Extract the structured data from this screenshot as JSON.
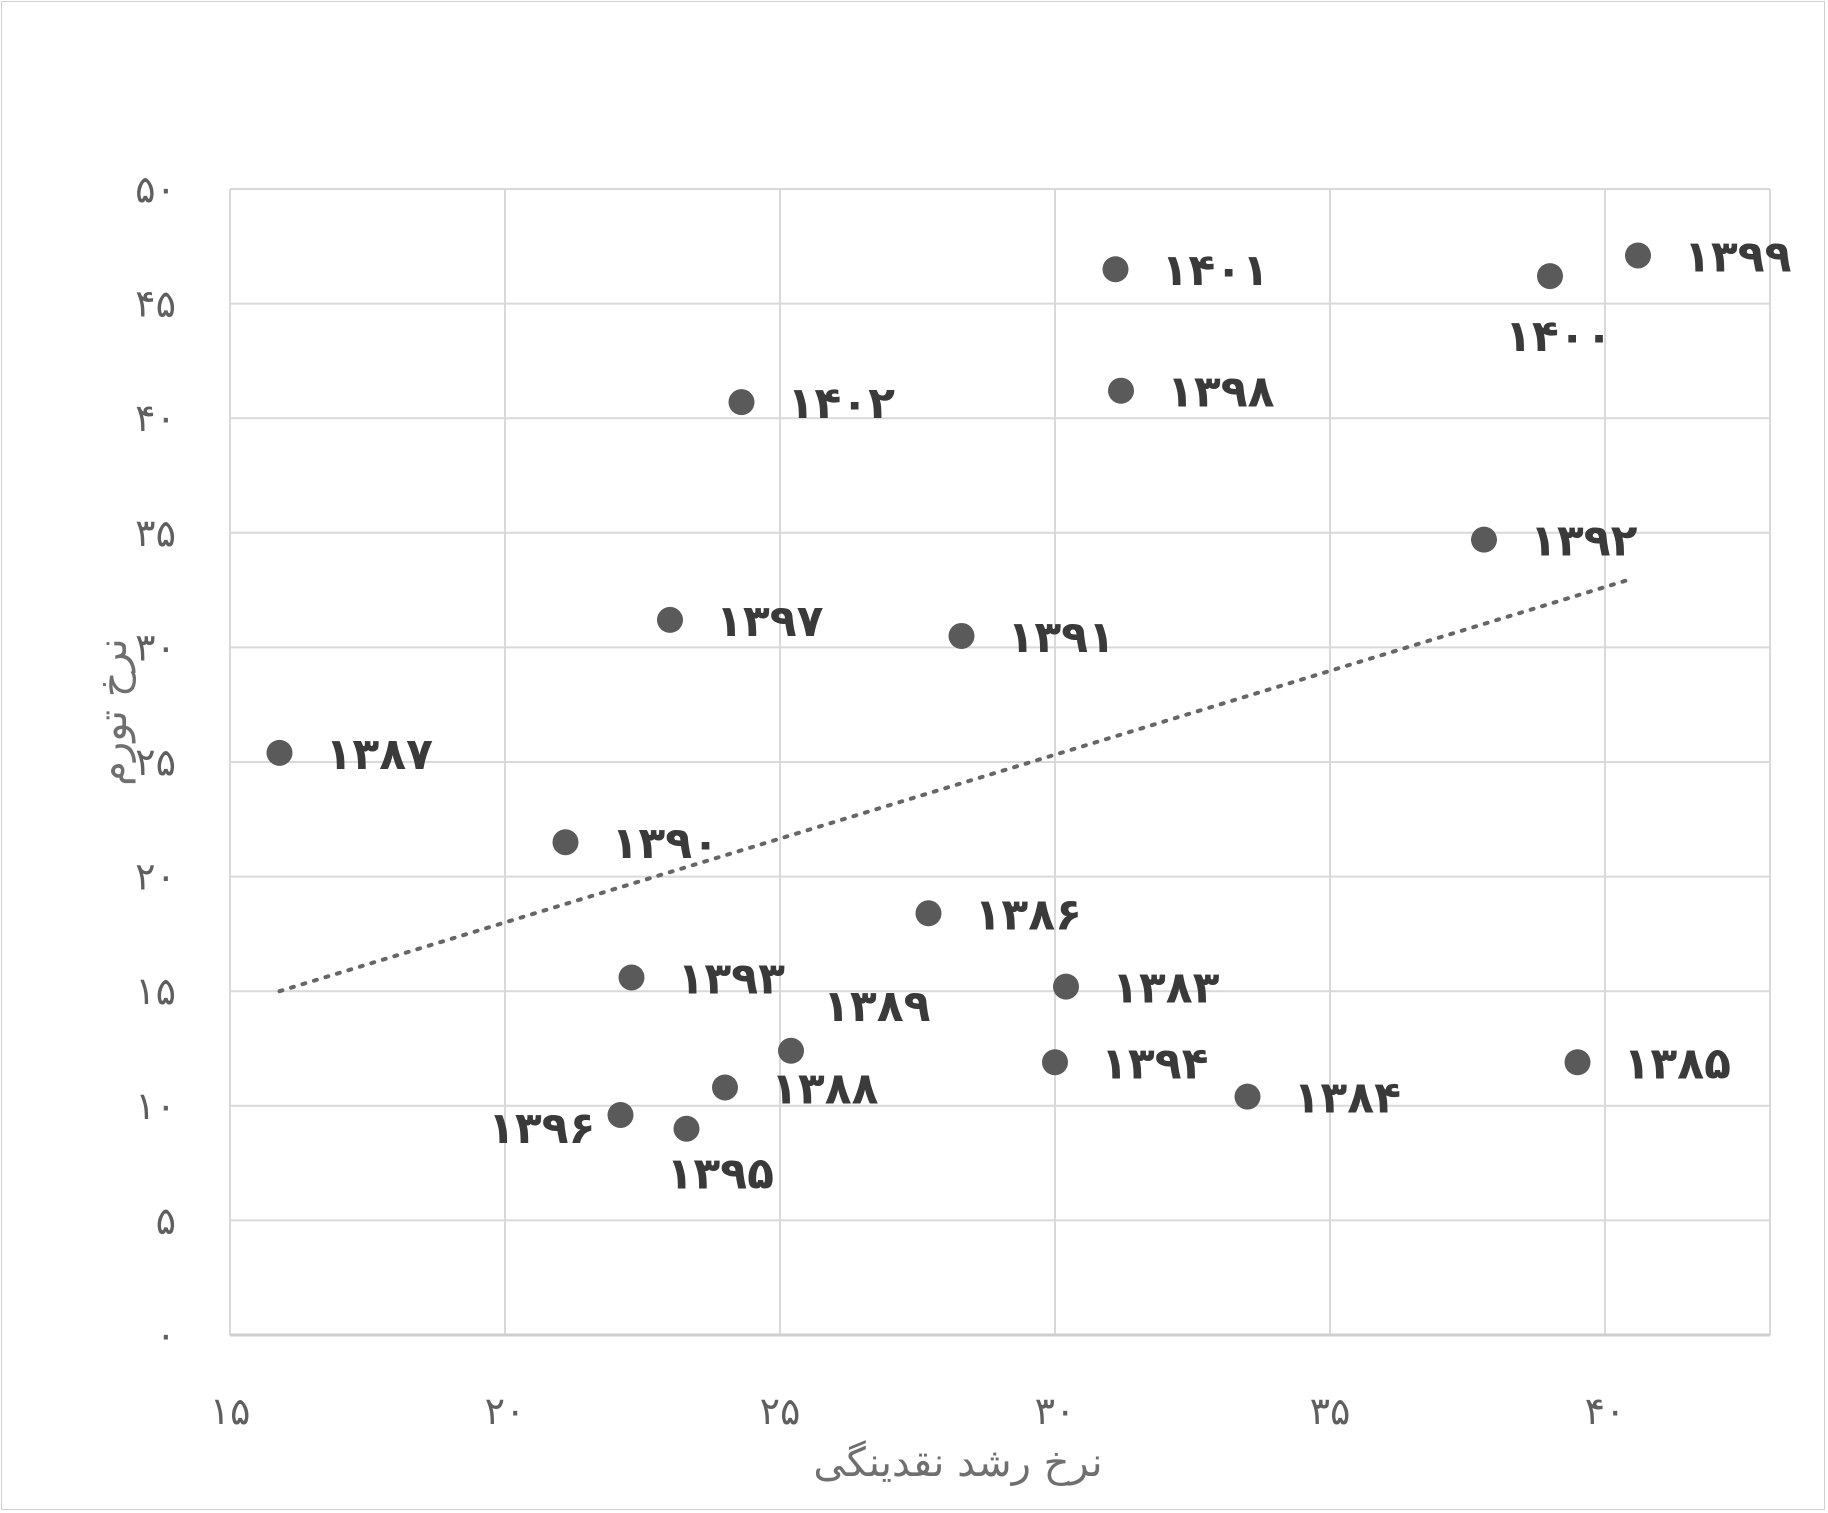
{
  "chart_data": {
    "type": "scatter",
    "xlabel": "نرخ رشد نقدینگی",
    "ylabel": "نرخ تورم",
    "xlim": [
      15,
      43
    ],
    "ylim": [
      0,
      50
    ],
    "x_ticks": [
      15,
      20,
      25,
      30,
      35,
      40
    ],
    "y_ticks": [
      0,
      5,
      10,
      15,
      20,
      25,
      30,
      35,
      40,
      45,
      50
    ],
    "x_tick_labels": [
      "۱۵",
      "۲۰",
      "۲۵",
      "۳۰",
      "۳۵",
      "۴۰"
    ],
    "y_tick_labels": [
      "۰",
      "۵",
      "۱۰",
      "۱۵",
      "۲۰",
      "۲۵",
      "۳۰",
      "۳۵",
      "۴۰",
      "۴۵",
      "۵۰"
    ],
    "grid": true,
    "trendline": {
      "type": "linear",
      "style": "dotted",
      "x": [
        15.9,
        40.5
      ],
      "y": [
        15.0,
        33.0
      ]
    },
    "colors": {
      "marker": "#5a5a5a",
      "grid": "#d9d9d9",
      "trendline": "#666666"
    },
    "points": [
      {
        "label": "۱۳۸۳",
        "x": 30.2,
        "y": 15.2
      },
      {
        "label": "۱۳۸۴",
        "x": 33.5,
        "y": 10.4
      },
      {
        "label": "۱۳۸۵",
        "x": 39.5,
        "y": 11.9
      },
      {
        "label": "۱۳۸۶",
        "x": 27.7,
        "y": 18.4
      },
      {
        "label": "۱۳۸۷",
        "x": 15.9,
        "y": 25.4
      },
      {
        "label": "۱۳۸۸",
        "x": 24.0,
        "y": 10.8
      },
      {
        "label": "۱۳۸۹",
        "x": 25.2,
        "y": 12.4
      },
      {
        "label": "۱۳۹۰",
        "x": 21.1,
        "y": 21.5
      },
      {
        "label": "۱۳۹۱",
        "x": 28.3,
        "y": 30.5
      },
      {
        "label": "۱۳۹۲",
        "x": 37.8,
        "y": 34.7
      },
      {
        "label": "۱۳۹۳",
        "x": 22.3,
        "y": 15.6
      },
      {
        "label": "۱۳۹۴",
        "x": 30.0,
        "y": 11.9
      },
      {
        "label": "۱۳۹۵",
        "x": 23.3,
        "y": 9.0
      },
      {
        "label": "۱۳۹۶",
        "x": 22.1,
        "y": 9.6
      },
      {
        "label": "۱۳۹۷",
        "x": 23.0,
        "y": 31.2
      },
      {
        "label": "۱۳۹۸",
        "x": 31.2,
        "y": 41.2
      },
      {
        "label": "۱۳۹۹",
        "x": 40.6,
        "y": 47.1
      },
      {
        "label": "۱۴۰۰",
        "x": 39.0,
        "y": 46.2
      },
      {
        "label": "۱۴۰۱",
        "x": 31.1,
        "y": 46.5
      },
      {
        "label": "۱۴۰۲",
        "x": 24.3,
        "y": 40.7
      }
    ]
  }
}
